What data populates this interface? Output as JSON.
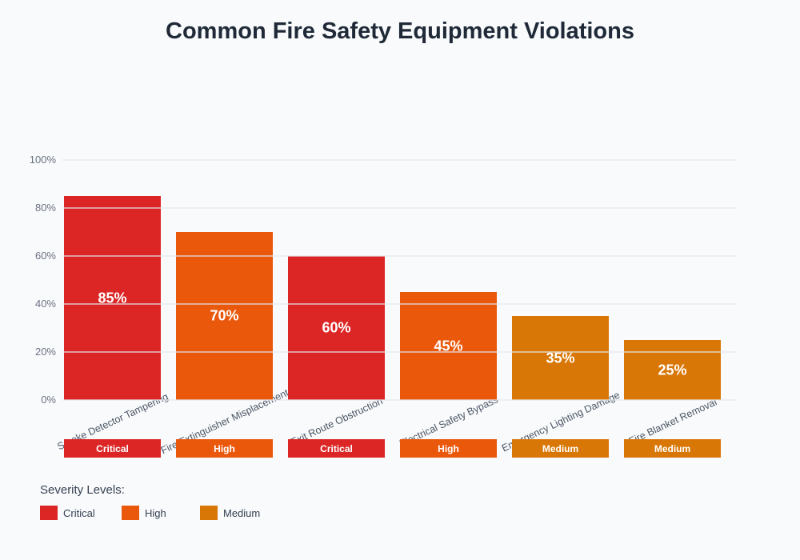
{
  "title": "Common Fire Safety Equipment Violations",
  "chart_data": {
    "type": "bar",
    "title": "Common Fire Safety Equipment Violations",
    "categories": [
      "Smoke Detector Tampering",
      "Fire Extinguisher Misplacement",
      "Exit Route Obstruction",
      "Electrical Safety Bypass",
      "Emergency Lighting Damage",
      "Fire Blanket Removal"
    ],
    "values": [
      85,
      70,
      60,
      45,
      35,
      25
    ],
    "value_labels": [
      "85%",
      "70%",
      "60%",
      "45%",
      "35%",
      "25%"
    ],
    "severities": [
      "Critical",
      "High",
      "Critical",
      "High",
      "Medium",
      "Medium"
    ],
    "severity_colors": {
      "Critical": "#dc2626",
      "High": "#ea580c",
      "Medium": "#d97706"
    },
    "xlabel": "",
    "ylabel": "",
    "ylim": [
      0,
      100
    ],
    "yticks": [
      {
        "value": 0,
        "label": "0%"
      },
      {
        "value": 20,
        "label": "20%"
      },
      {
        "value": 40,
        "label": "40%"
      },
      {
        "value": 60,
        "label": "60%"
      },
      {
        "value": 80,
        "label": "80%"
      },
      {
        "value": 100,
        "label": "100%"
      }
    ],
    "grid": true,
    "legend_position": "bottom-left",
    "legend_title": "Severity Levels:",
    "legend": [
      {
        "label": "Critical",
        "color": "#dc2626"
      },
      {
        "label": "High",
        "color": "#ea580c"
      },
      {
        "label": "Medium",
        "color": "#d97706"
      }
    ]
  },
  "colors": {
    "background": "#f8fafc",
    "title_text": "#1f2937",
    "axis_tick_text": "#6b7280",
    "category_text": "#4b5563",
    "gridline": "#e5e7eb",
    "bar_value_text": "#ffffff",
    "badge_text": "#ffffff",
    "legend_text": "#374151"
  }
}
